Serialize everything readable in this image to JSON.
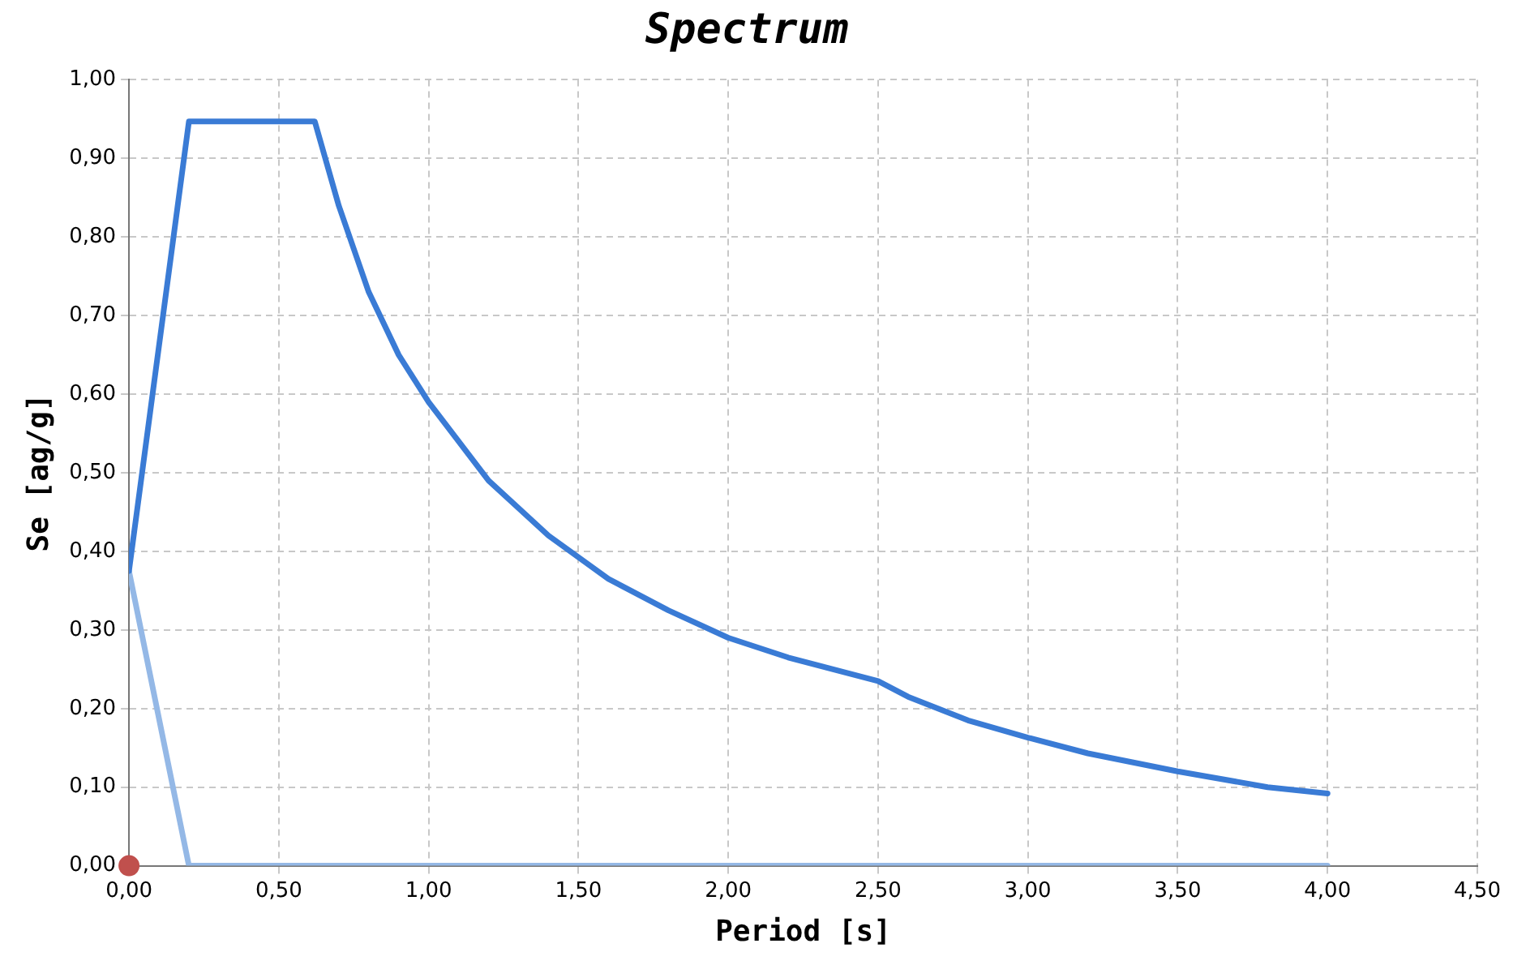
{
  "chart_data": {
    "type": "line",
    "title": "Spectrum",
    "xlabel": "Period [s]",
    "ylabel": "Se [ag/g]",
    "xlim": [
      0,
      4.5
    ],
    "ylim": [
      0,
      1
    ],
    "xticks": [
      {
        "value": 0,
        "label": "0,00"
      },
      {
        "value": 0.5,
        "label": "0,50"
      },
      {
        "value": 1,
        "label": "1,00"
      },
      {
        "value": 1.5,
        "label": "1,50"
      },
      {
        "value": 2,
        "label": "2,00"
      },
      {
        "value": 2.5,
        "label": "2,50"
      },
      {
        "value": 3,
        "label": "3,00"
      },
      {
        "value": 3.5,
        "label": "3,50"
      },
      {
        "value": 4,
        "label": "4,00"
      },
      {
        "value": 4.5,
        "label": "4,50"
      }
    ],
    "yticks": [
      {
        "value": 0,
        "label": "0,00"
      },
      {
        "value": 0.1,
        "label": "0,10"
      },
      {
        "value": 0.2,
        "label": "0,20"
      },
      {
        "value": 0.3,
        "label": "0,30"
      },
      {
        "value": 0.4,
        "label": "0,40"
      },
      {
        "value": 0.5,
        "label": "0,50"
      },
      {
        "value": 0.6,
        "label": "0,60"
      },
      {
        "value": 0.7,
        "label": "0,70"
      },
      {
        "value": 0.8,
        "label": "0,80"
      },
      {
        "value": 0.9,
        "label": "0,90"
      },
      {
        "value": 1,
        "label": "1,00"
      }
    ],
    "grid": true,
    "legend": false,
    "marker": "none",
    "line_style": "solid",
    "series": [
      {
        "color": "#3a7bd5",
        "x": [
          0,
          0.2,
          0.62,
          0.7,
          0.8,
          0.9,
          1.0,
          1.2,
          1.4,
          1.6,
          1.8,
          2.0,
          2.2,
          2.5,
          2.6,
          2.8,
          3.0,
          3.2,
          3.5,
          3.8,
          4.0
        ],
        "values": [
          0.375,
          0.947,
          0.947,
          0.84,
          0.73,
          0.65,
          0.59,
          0.49,
          0.42,
          0.365,
          0.325,
          0.29,
          0.265,
          0.235,
          0.215,
          0.185,
          0.163,
          0.143,
          0.12,
          0.1,
          0.092
        ]
      },
      {
        "type": "line",
        "color": "#94b8e6",
        "x": [
          0,
          0.2,
          4.0
        ],
        "values": [
          0.375,
          0,
          0
        ]
      },
      {
        "type": "scatter",
        "marker": "circle",
        "color": "#c0504d",
        "x": [
          0
        ],
        "values": [
          0
        ]
      }
    ]
  }
}
